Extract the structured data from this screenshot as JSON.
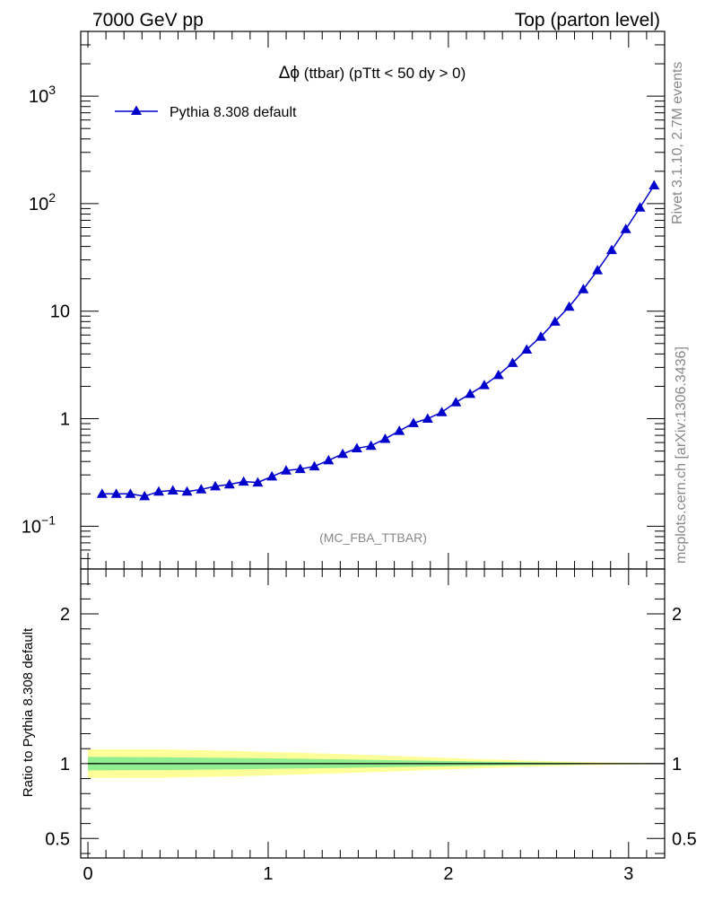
{
  "header": {
    "left": "7000 GeV pp",
    "right": "Top (parton level)"
  },
  "side": {
    "rivet": "Rivet 3.1.10,  2.7M events",
    "mcplots": "mcplots.cern.ch [arXiv:1306.3436]"
  },
  "main_panel": {
    "title_symbol": "Δϕ",
    "title_rest": " (ttbar) (pTtt < 50 dy > 0)",
    "analysis_label": "(MC_FBA_TTBAR)"
  },
  "ratio_panel": {
    "ylabel": "Ratio to Pythia 8.308 default"
  },
  "colors": {
    "series": "#0000cc",
    "band_inner": "#90ee90",
    "band_outer": "#ffff99"
  },
  "chart_data": [
    {
      "type": "line",
      "yscale": "log",
      "ylim": [
        0.04,
        4000
      ],
      "xlim": [
        -0.04,
        3.2
      ],
      "y_ticks": [
        {
          "v": 0.1,
          "label": "10",
          "sup": "−1"
        },
        {
          "v": 1,
          "label": "1",
          "sup": ""
        },
        {
          "v": 10,
          "label": "10",
          "sup": ""
        },
        {
          "v": 100,
          "label": "10",
          "sup": "2"
        },
        {
          "v": 1000,
          "label": "10",
          "sup": "3"
        }
      ],
      "series": [
        {
          "name": "Pythia 8.308 default",
          "x": [
            0.0785,
            0.1571,
            0.2356,
            0.3142,
            0.3927,
            0.4712,
            0.5498,
            0.6283,
            0.7069,
            0.7854,
            0.8639,
            0.9425,
            1.021,
            1.0996,
            1.1781,
            1.2566,
            1.3352,
            1.4137,
            1.4923,
            1.5708,
            1.6493,
            1.7279,
            1.8064,
            1.885,
            1.9635,
            2.042,
            2.1206,
            2.1991,
            2.2777,
            2.3562,
            2.4347,
            2.5133,
            2.5918,
            2.6704,
            2.7489,
            2.8274,
            2.906,
            2.9845,
            3.0631,
            3.1416
          ],
          "y": [
            0.2,
            0.2,
            0.2,
            0.19,
            0.21,
            0.215,
            0.21,
            0.22,
            0.235,
            0.245,
            0.26,
            0.255,
            0.29,
            0.33,
            0.34,
            0.36,
            0.41,
            0.47,
            0.53,
            0.56,
            0.65,
            0.77,
            0.91,
            1.0,
            1.15,
            1.42,
            1.7,
            2.05,
            2.55,
            3.3,
            4.4,
            5.8,
            8.0,
            11.0,
            16.0,
            24.0,
            37.0,
            58.0,
            92.0,
            148.0
          ]
        }
      ]
    },
    {
      "type": "area",
      "ylim": [
        0.37,
        2.3
      ],
      "xlim": [
        -0.04,
        3.2
      ],
      "x_ticks": [
        0,
        1,
        2,
        3
      ],
      "y_ticks": [
        {
          "v": 0.5,
          "label": "0.5"
        },
        {
          "v": 1,
          "label": "1"
        },
        {
          "v": 2,
          "label": "2"
        }
      ],
      "reference": 1,
      "band_x": [
        0.0,
        0.4,
        0.8,
        1.2,
        1.6,
        2.0,
        2.4,
        2.8,
        3.2
      ],
      "band_outer": [
        0.095,
        0.095,
        0.085,
        0.072,
        0.056,
        0.038,
        0.022,
        0.009,
        0.003
      ],
      "band_inner": [
        0.045,
        0.043,
        0.038,
        0.032,
        0.025,
        0.017,
        0.01,
        0.004,
        0.0015
      ]
    }
  ]
}
